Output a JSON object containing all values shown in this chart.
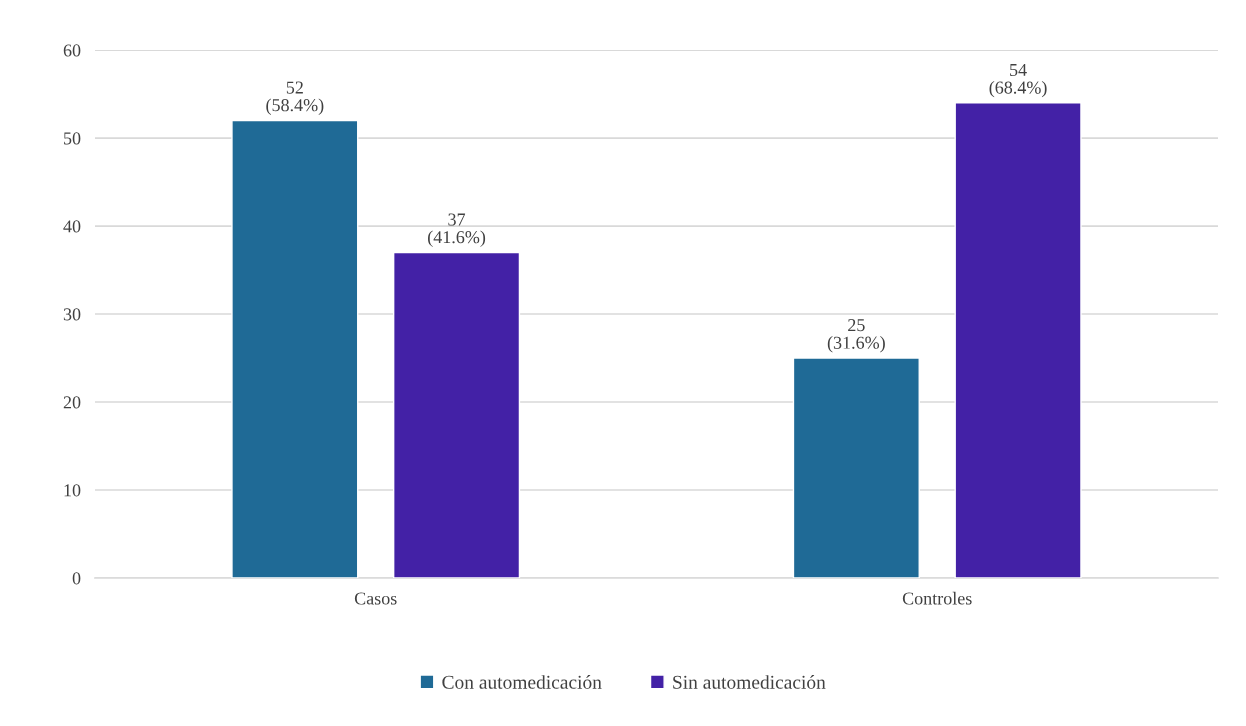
{
  "chart_data": {
    "type": "bar",
    "categories": [
      "Casos",
      "Controles"
    ],
    "series": [
      {
        "name": "Con automedicación",
        "color": "#1f6a96",
        "values": [
          52,
          25
        ],
        "value_labels": [
          "52\n(58.4%)",
          "25\n(31.6%)"
        ]
      },
      {
        "name": "Sin automedicación",
        "color": "#4321a6",
        "values": [
          37,
          54
        ],
        "value_labels": [
          "37\n(41.6%)",
          "54\n(68.4%)"
        ]
      }
    ],
    "ylim": [
      0,
      60
    ],
    "yticks": [
      0,
      10,
      20,
      30,
      40,
      50,
      60
    ],
    "grid": "y",
    "legend": "bottom"
  }
}
